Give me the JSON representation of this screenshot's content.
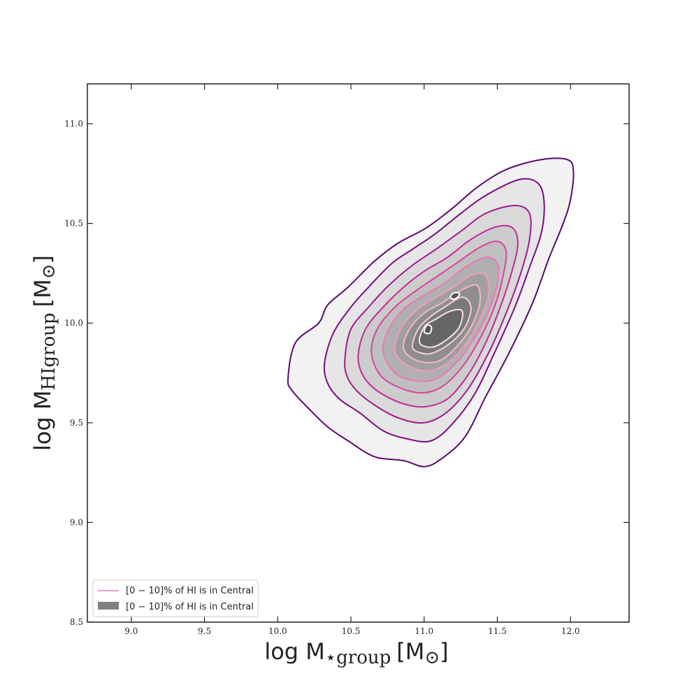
{
  "chart_data": {
    "type": "contour",
    "title": "",
    "xlabel": {
      "main": "log M",
      "subscript": "⋆group",
      "unit": "[M",
      "unit_sub": "⊙",
      "unit_close": "]"
    },
    "ylabel": {
      "main": "log M",
      "subscript": "HIgroup",
      "unit": "[M",
      "unit_sub": "⊙",
      "unit_close": "]"
    },
    "xlim": [
      8.7,
      12.4
    ],
    "ylim": [
      8.5,
      11.2
    ],
    "xticks": [
      "9.0",
      "9.5",
      "10.0",
      "10.5",
      "11.0",
      "11.5",
      "12.0"
    ],
    "yticks": [
      "8.5",
      "9.0",
      "9.5",
      "10.0",
      "10.5",
      "11.0"
    ],
    "grid": false,
    "legend": {
      "placement": "lower-left",
      "entries": [
        {
          "label": "[0 − 10]% of HI is in Central",
          "style": "line",
          "color": "#e377c2"
        },
        {
          "label": "[0 − 10]% of HI is in Central",
          "style": "patch",
          "color": "#808080"
        }
      ]
    },
    "density_peaks": [
      {
        "x": 11.02,
        "y": 9.97
      },
      {
        "x": 11.21,
        "y": 10.14
      }
    ],
    "levels": [
      {
        "level": 1,
        "fill": "#f2f2f2",
        "line": "#5a0a6e",
        "points": [
          [
            10.07,
            9.72
          ],
          [
            10.12,
            9.9
          ],
          [
            10.28,
            10.0
          ],
          [
            10.34,
            10.09
          ],
          [
            10.48,
            10.18
          ],
          [
            10.66,
            10.31
          ],
          [
            10.82,
            10.4
          ],
          [
            11.02,
            10.48
          ],
          [
            11.2,
            10.58
          ],
          [
            11.36,
            10.68
          ],
          [
            11.56,
            10.77
          ],
          [
            11.8,
            10.82
          ],
          [
            11.98,
            10.82
          ],
          [
            12.02,
            10.76
          ],
          [
            12.0,
            10.62
          ],
          [
            11.95,
            10.5
          ],
          [
            11.85,
            10.32
          ],
          [
            11.74,
            10.1
          ],
          [
            11.58,
            9.85
          ],
          [
            11.42,
            9.63
          ],
          [
            11.28,
            9.43
          ],
          [
            11.12,
            9.32
          ],
          [
            11.0,
            9.28
          ],
          [
            10.86,
            9.31
          ],
          [
            10.66,
            9.33
          ],
          [
            10.48,
            9.41
          ],
          [
            10.34,
            9.48
          ],
          [
            10.2,
            9.58
          ],
          [
            10.1,
            9.66
          ]
        ]
      },
      {
        "level": 2,
        "fill": "#e6e6e6",
        "line": "#7a0d80",
        "points": [
          [
            10.32,
            9.8
          ],
          [
            10.38,
            9.95
          ],
          [
            10.5,
            10.08
          ],
          [
            10.62,
            10.18
          ],
          [
            10.78,
            10.3
          ],
          [
            10.92,
            10.37
          ],
          [
            11.08,
            10.45
          ],
          [
            11.25,
            10.55
          ],
          [
            11.42,
            10.64
          ],
          [
            11.65,
            10.72
          ],
          [
            11.78,
            10.7
          ],
          [
            11.82,
            10.6
          ],
          [
            11.8,
            10.45
          ],
          [
            11.72,
            10.28
          ],
          [
            11.62,
            10.08
          ],
          [
            11.48,
            9.85
          ],
          [
            11.35,
            9.65
          ],
          [
            11.2,
            9.5
          ],
          [
            11.05,
            9.41
          ],
          [
            10.88,
            9.42
          ],
          [
            10.72,
            9.46
          ],
          [
            10.56,
            9.55
          ],
          [
            10.42,
            9.62
          ],
          [
            10.34,
            9.7
          ]
        ]
      },
      {
        "level": 3,
        "fill": "#d9d9d9",
        "line": "#9e1b8c",
        "points": [
          [
            10.46,
            9.83
          ],
          [
            10.5,
            9.97
          ],
          [
            10.62,
            10.08
          ],
          [
            10.76,
            10.19
          ],
          [
            10.92,
            10.29
          ],
          [
            11.08,
            10.37
          ],
          [
            11.25,
            10.46
          ],
          [
            11.42,
            10.55
          ],
          [
            11.62,
            10.59
          ],
          [
            11.72,
            10.55
          ],
          [
            11.72,
            10.42
          ],
          [
            11.66,
            10.25
          ],
          [
            11.56,
            10.05
          ],
          [
            11.44,
            9.85
          ],
          [
            11.3,
            9.67
          ],
          [
            11.15,
            9.55
          ],
          [
            11.0,
            9.5
          ],
          [
            10.84,
            9.52
          ],
          [
            10.68,
            9.58
          ],
          [
            10.54,
            9.66
          ],
          [
            10.47,
            9.74
          ]
        ]
      },
      {
        "level": 4,
        "fill": "#cccccc",
        "line": "#c02a96",
        "points": [
          [
            10.55,
            9.84
          ],
          [
            10.6,
            9.97
          ],
          [
            10.72,
            10.08
          ],
          [
            10.86,
            10.18
          ],
          [
            11.0,
            10.26
          ],
          [
            11.16,
            10.33
          ],
          [
            11.32,
            10.42
          ],
          [
            11.48,
            10.48
          ],
          [
            11.6,
            10.48
          ],
          [
            11.64,
            10.4
          ],
          [
            11.6,
            10.26
          ],
          [
            11.52,
            10.08
          ],
          [
            11.42,
            9.9
          ],
          [
            11.3,
            9.74
          ],
          [
            11.16,
            9.62
          ],
          [
            11.0,
            9.58
          ],
          [
            10.84,
            9.6
          ],
          [
            10.68,
            9.66
          ],
          [
            10.58,
            9.74
          ]
        ]
      },
      {
        "level": 5,
        "fill": "#bfbfbf",
        "line": "#d9439e",
        "points": [
          [
            10.64,
            9.85
          ],
          [
            10.68,
            9.97
          ],
          [
            10.8,
            10.08
          ],
          [
            10.94,
            10.16
          ],
          [
            11.08,
            10.23
          ],
          [
            11.22,
            10.3
          ],
          [
            11.38,
            10.38
          ],
          [
            11.5,
            10.41
          ],
          [
            11.56,
            10.36
          ],
          [
            11.54,
            10.24
          ],
          [
            11.48,
            10.08
          ],
          [
            11.38,
            9.92
          ],
          [
            11.26,
            9.78
          ],
          [
            11.12,
            9.68
          ],
          [
            10.98,
            9.65
          ],
          [
            10.82,
            9.68
          ],
          [
            10.7,
            9.74
          ]
        ]
      },
      {
        "level": 6,
        "fill": "#b0b0b0",
        "line": "#ec77b6",
        "points": [
          [
            10.72,
            9.86
          ],
          [
            10.76,
            9.97
          ],
          [
            10.86,
            10.07
          ],
          [
            11.0,
            10.14
          ],
          [
            11.14,
            10.2
          ],
          [
            11.28,
            10.28
          ],
          [
            11.42,
            10.33
          ],
          [
            11.5,
            10.3
          ],
          [
            11.5,
            10.2
          ],
          [
            11.44,
            10.06
          ],
          [
            11.34,
            9.92
          ],
          [
            11.22,
            9.8
          ],
          [
            11.08,
            9.72
          ],
          [
            10.94,
            9.71
          ],
          [
            10.8,
            9.75
          ]
        ]
      },
      {
        "level": 7,
        "fill": "#a0a0a0",
        "line": "#f39ac0",
        "points": [
          [
            10.8,
            9.86
          ],
          [
            10.84,
            9.97
          ],
          [
            10.94,
            10.06
          ],
          [
            11.06,
            10.12
          ],
          [
            11.2,
            10.18
          ],
          [
            11.32,
            10.24
          ],
          [
            11.42,
            10.24
          ],
          [
            11.44,
            10.14
          ],
          [
            11.38,
            10.02
          ],
          [
            11.28,
            9.89
          ],
          [
            11.16,
            9.8
          ],
          [
            11.02,
            9.76
          ],
          [
            10.88,
            9.79
          ]
        ]
      },
      {
        "level": 8,
        "fill": "#8e8e8e",
        "line": "#f6b6c9",
        "points": [
          [
            10.86,
            9.87
          ],
          [
            10.9,
            9.97
          ],
          [
            11.0,
            10.05
          ],
          [
            11.12,
            10.1
          ],
          [
            11.24,
            10.16
          ],
          [
            11.36,
            10.19
          ],
          [
            11.38,
            10.1
          ],
          [
            11.32,
            9.98
          ],
          [
            11.22,
            9.88
          ],
          [
            11.1,
            9.81
          ],
          [
            10.96,
            9.81
          ]
        ]
      },
      {
        "level": 9,
        "fill": "#7a7a7a",
        "line": "#f9cdd6",
        "points": [
          [
            10.92,
            9.88
          ],
          [
            10.96,
            9.97
          ],
          [
            11.04,
            10.03
          ],
          [
            11.14,
            10.08
          ],
          [
            11.26,
            10.13
          ],
          [
            11.32,
            10.08
          ],
          [
            11.28,
            9.98
          ],
          [
            11.18,
            9.9
          ],
          [
            11.06,
            9.85
          ],
          [
            10.98,
            9.85
          ]
        ]
      },
      {
        "level": 10,
        "fill": "#666666",
        "line": "#fbe0e3",
        "points": [
          [
            10.97,
            9.9
          ],
          [
            11.0,
            9.98
          ],
          [
            11.08,
            10.02
          ],
          [
            11.18,
            10.06
          ],
          [
            11.26,
            10.06
          ],
          [
            11.24,
            9.98
          ],
          [
            11.16,
            9.92
          ],
          [
            11.06,
            9.88
          ]
        ]
      },
      {
        "level": 11,
        "fill": "#555555",
        "line": "#ffffff",
        "points": [
          [
            11.0,
            9.96
          ],
          [
            11.02,
            9.99
          ],
          [
            11.05,
            9.98
          ],
          [
            11.04,
            9.95
          ],
          [
            11.01,
            9.95
          ]
        ]
      },
      {
        "level": 11,
        "fill": "#555555",
        "line": "#ffffff",
        "points": [
          [
            11.18,
            10.13
          ],
          [
            11.2,
            10.15
          ],
          [
            11.24,
            10.15
          ],
          [
            11.23,
            10.13
          ],
          [
            11.2,
            10.12
          ]
        ]
      }
    ]
  }
}
